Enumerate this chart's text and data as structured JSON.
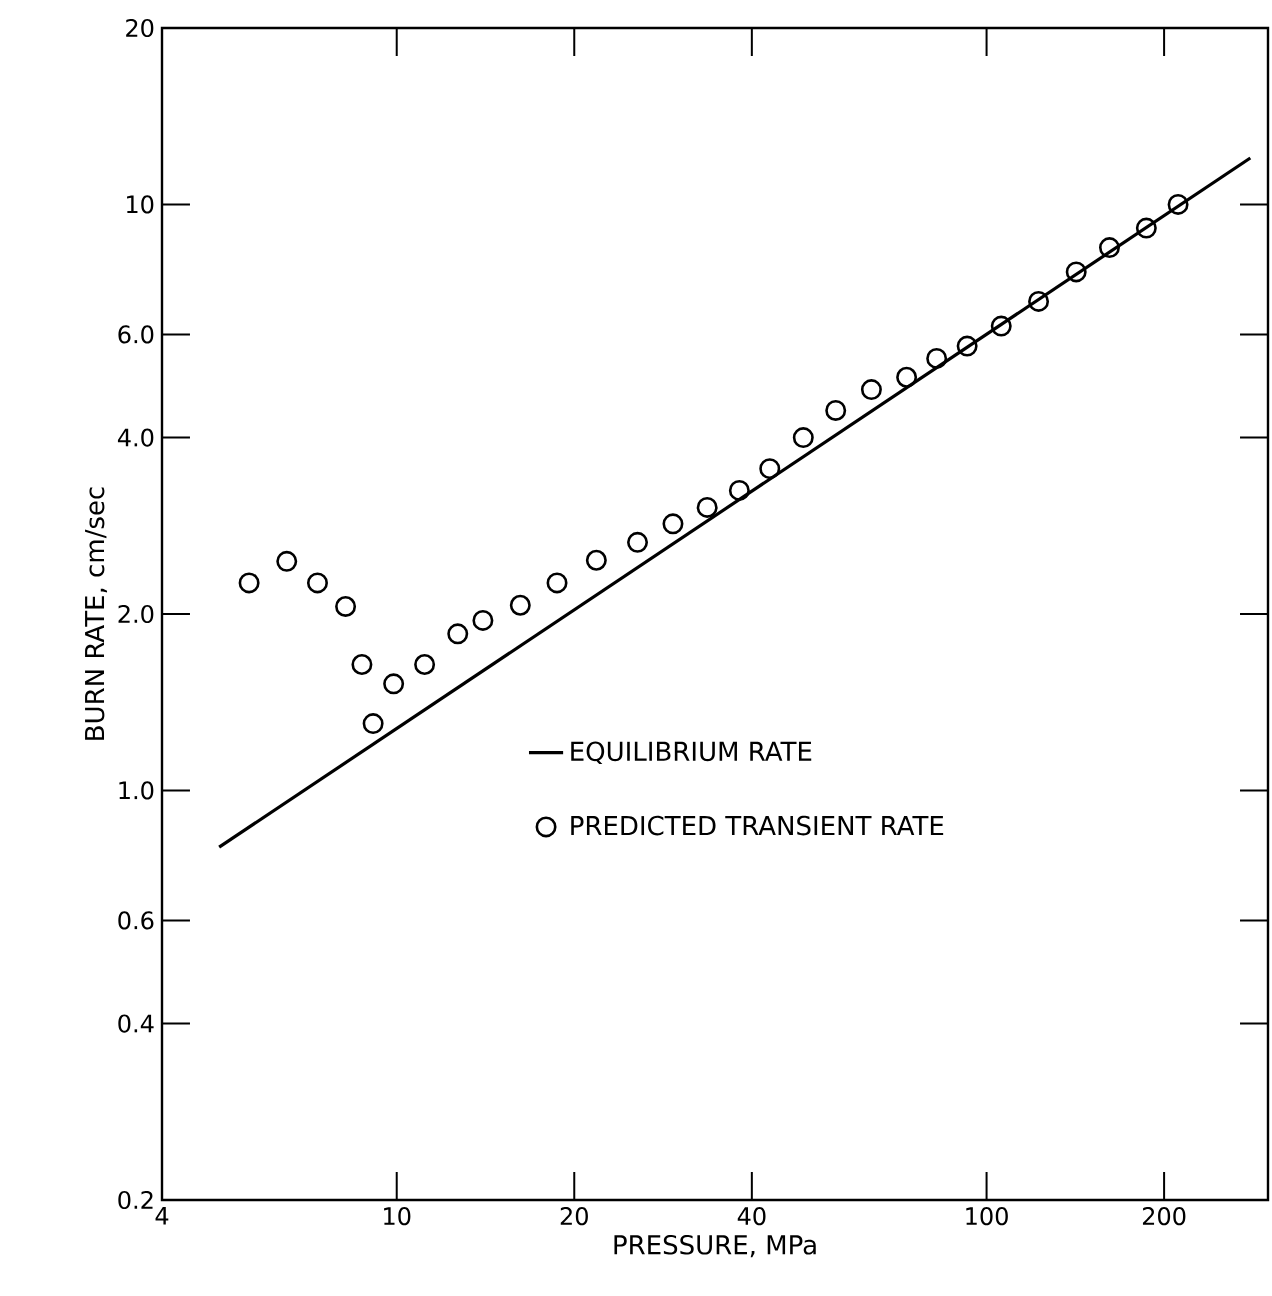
{
  "chart_data": {
    "type": "scatter",
    "xlabel": "PRESSURE, MPa",
    "ylabel": "BURN RATE, cm/sec",
    "log": "xy",
    "grid": false,
    "legend": "right",
    "xlim": [
      4,
      300
    ],
    "ylim": [
      0.2,
      20
    ],
    "xticks": [
      4,
      10,
      20,
      40,
      100,
      200
    ],
    "yticks": [
      {
        "value": 0.2,
        "label": "0.2"
      },
      {
        "value": 0.4,
        "label": "0.4"
      },
      {
        "value": 0.6,
        "label": "0.6"
      },
      {
        "value": 1,
        "label": "1.0"
      },
      {
        "value": 2,
        "label": "2.0"
      },
      {
        "value": 4,
        "label": "4.0"
      },
      {
        "value": 6,
        "label": "6.0"
      },
      10,
      20
    ],
    "series": [
      {
        "name": "EQUILIBRIUM RATE",
        "type": "line",
        "marker": "none",
        "line_style": "solid",
        "color": "#000000",
        "x": [
          5.0,
          280
        ],
        "values": [
          0.8,
          12.0
        ]
      },
      {
        "name": "PREDICTED TRANSIENT RATE",
        "marker": "circle",
        "color": "#000000",
        "x": [
          5.62,
          6.51,
          7.34,
          8.19,
          8.73,
          9.12,
          9.88,
          11.15,
          12.69,
          14.0,
          16.2,
          18.7,
          21.8,
          25.6,
          29.4,
          33.6,
          38.1,
          42.9,
          48.9,
          55.5,
          63.8,
          73.2,
          82.3,
          92.7,
          105.9,
          122.5,
          141.9,
          161.6,
          186.6,
          211.2
        ],
        "values": [
          2.26,
          2.46,
          2.26,
          2.06,
          1.64,
          1.3,
          1.52,
          1.64,
          1.85,
          1.95,
          2.07,
          2.26,
          2.47,
          2.65,
          2.85,
          3.04,
          3.25,
          3.54,
          4.0,
          4.45,
          4.83,
          5.07,
          5.46,
          5.73,
          6.2,
          6.83,
          7.67,
          8.44,
          9.11,
          10.0
        ]
      }
    ]
  }
}
